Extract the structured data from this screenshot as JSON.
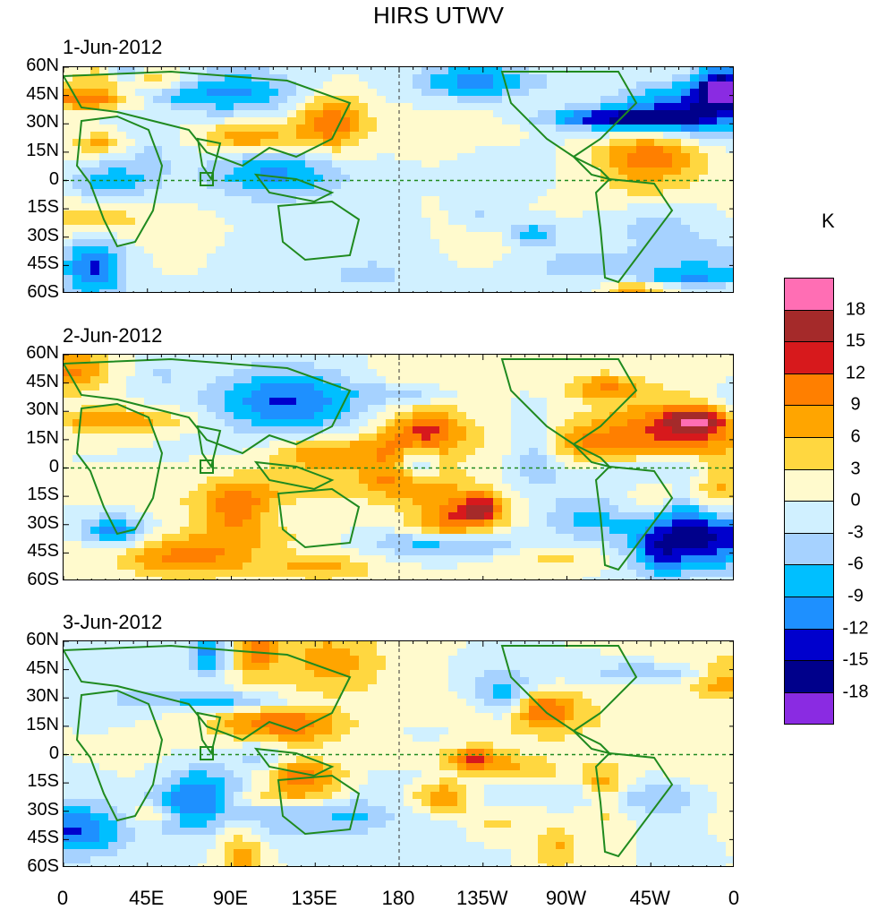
{
  "title": "HIRS UTWV",
  "unit": "K",
  "panels": [
    {
      "date": "1-Jun-2012"
    },
    {
      "date": "2-Jun-2012"
    },
    {
      "date": "3-Jun-2012"
    }
  ],
  "lat_labels": [
    "60N",
    "45N",
    "30N",
    "15N",
    "0",
    "15S",
    "30S",
    "45S",
    "60S"
  ],
  "lon_labels": [
    "0",
    "45E",
    "90E",
    "135E",
    "180",
    "135W",
    "90W",
    "45W",
    "0"
  ],
  "colorbar": {
    "levels": [
      "18",
      "15",
      "12",
      "9",
      "6",
      "3",
      "0",
      "-3",
      "-6",
      "-9",
      "-12",
      "-15",
      "-18"
    ],
    "colors": [
      "#ff6eb4",
      "#a52a2a",
      "#d7191c",
      "#ff7f00",
      "#ffa500",
      "#ffd740",
      "#fffacd",
      "#d0f0ff",
      "#a6d2ff",
      "#00bfff",
      "#1e90ff",
      "#0000cd",
      "#00008b",
      "#8a2be2"
    ]
  },
  "colors": {
    "coastline": "#1f8a1f",
    "background": "#ffffff"
  }
}
